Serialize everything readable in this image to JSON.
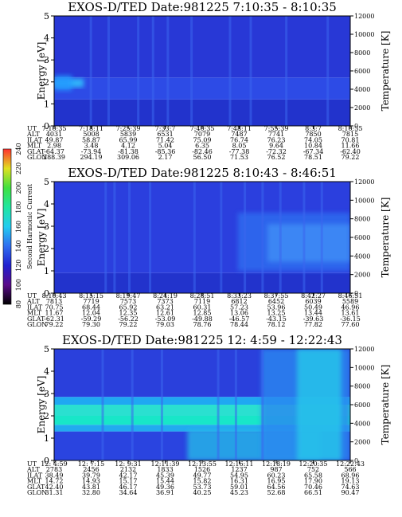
{
  "chart_data": [
    {
      "type": "heatmap",
      "title": "EXOS-D/TED   Date:981225  7:10:35 - 8:10:35",
      "ylabel": "Energy [eV]",
      "y2label": "Temperature [K]",
      "ylim": [
        0,
        5
      ],
      "yticks": [
        "0",
        "1",
        "2",
        "3",
        "4",
        "5"
      ],
      "y2lim": [
        0,
        12000
      ],
      "y2ticks": [
        "0",
        "2000",
        "4000",
        "6000",
        "8000",
        "10000",
        "12000"
      ],
      "bands": [
        {
          "from": 0.0,
          "to": 1.2,
          "color": "#2233cc"
        },
        {
          "from": 1.2,
          "to": 2.2,
          "color": "#2d4be6"
        },
        {
          "from": 2.2,
          "to": 5.0,
          "color": "#2838d6"
        }
      ],
      "blobs": [
        {
          "x0": 0.0,
          "x1": 0.1,
          "y0": 1.75,
          "y1": 2.15,
          "color": "#33ccff"
        },
        {
          "x0": 0.0,
          "x1": 0.06,
          "y0": 1.6,
          "y1": 2.3,
          "color": "#2299ff"
        }
      ],
      "streaks": [
        0.12,
        0.18,
        0.28,
        0.33,
        0.38,
        0.46,
        0.59,
        0.66,
        0.78,
        0.92
      ],
      "annotation": {
        "rows": [
          {
            "label": "UT",
            "values": [
              "7:10:35",
              "7:18:11",
              "7:25:39",
              "7:33:7",
              "7:40:35",
              "7:48:11",
              "7:55:39",
              "8:3:7",
              "8:10:35"
            ]
          },
          {
            "label": "ALT",
            "values": [
              "4031",
              "5008",
              "5839",
              "6531",
              "7079",
              "7487",
              "7741",
              "7850",
              "7815"
            ]
          },
          {
            "label": "ILAT",
            "values": [
              "49.87",
              "58.87",
              "65.99",
              "71.42",
              "75.09",
              "76.74",
              "76.23",
              "74.05",
              "70.81"
            ]
          },
          {
            "label": "MLT",
            "values": [
              "2.98",
              "3.48",
              "4.12",
              "5.04",
              "6.35",
              "8.05",
              "9.64",
              "10.84",
              "11.66"
            ]
          },
          {
            "label": "GLAT",
            "values": [
              "-64.37",
              "-73.94",
              "-81.38",
              "-85.36",
              "-82.46",
              "-77.38",
              "-72.32",
              "-67.34",
              "-62.40"
            ]
          },
          {
            "label": "GLON",
            "values": [
              "288.39",
              "294.19",
              "309.06",
              "2.17",
              "56.50",
              "71.53",
              "76.52",
              "78.51",
              "79.22"
            ]
          }
        ]
      }
    },
    {
      "type": "heatmap",
      "title": "EXOS-D/TED   Date:981225  8:10:43 - 8:46:51",
      "ylabel": "Energy [eV]",
      "y2label": "Temperature [K]",
      "ylim": [
        0,
        5
      ],
      "yticks": [
        "0",
        "1",
        "2",
        "3",
        "4",
        "5"
      ],
      "y2lim": [
        0,
        12000
      ],
      "y2ticks": [
        "0",
        "2000",
        "4000",
        "6000",
        "8000",
        "10000",
        "12000"
      ],
      "bands": [
        {
          "from": 0.0,
          "to": 0.9,
          "color": "#2233cc"
        },
        {
          "from": 0.9,
          "to": 5.0,
          "color": "#2b3fde"
        }
      ],
      "blobs": [
        {
          "x0": 0.62,
          "x1": 1.0,
          "y0": 1.0,
          "y1": 3.6,
          "color": "#2f6ef0"
        },
        {
          "x0": 0.72,
          "x1": 1.0,
          "y0": 1.4,
          "y1": 3.1,
          "color": "#3f8ff6"
        }
      ],
      "streaks": [
        0.17,
        0.2,
        0.25,
        0.32,
        0.47,
        0.56,
        0.64,
        0.7,
        0.76,
        0.84,
        0.9
      ],
      "annotation": {
        "rows": [
          {
            "label": "UT",
            "values": [
              "8:10:43",
              "8:15:15",
              "8:19:47",
              "8:24:19",
              "8:28:51",
              "8:33:23",
              "8:37:55",
              "8:42:27",
              "8:46:51"
            ]
          },
          {
            "label": "ALT",
            "values": [
              "7813",
              "7719",
              "7573",
              "7373",
              "7119",
              "6812",
              "6452",
              "6039",
              "5589"
            ]
          },
          {
            "label": "ILAT",
            "values": [
              "70.75",
              "68.44",
              "65.92",
              "63.21",
              "60.31",
              "57.23",
              "53.96",
              "50.49",
              "46.96"
            ]
          },
          {
            "label": "MLT",
            "values": [
              "11.67",
              "12.04",
              "12.35",
              "12.61",
              "12.85",
              "13.06",
              "13.25",
              "13.44",
              "13.61"
            ]
          },
          {
            "label": "GLAT",
            "values": [
              "-62.31",
              "-59.29",
              "-56.22",
              "-53.09",
              "-49.88",
              "-46.57",
              "-43.15",
              "-39.63",
              "-36.15"
            ]
          },
          {
            "label": "GLON",
            "values": [
              "79.22",
              "79.30",
              "79.22",
              "79.03",
              "78.76",
              "78.44",
              "78.12",
              "77.82",
              "77.60"
            ]
          }
        ]
      }
    },
    {
      "type": "heatmap",
      "title": "EXOS-D/TED   Date:981225  12: 4:59 - 12:22:43",
      "ylabel": "Energy [eV]",
      "y2label": "Temperature [K]",
      "ylim": [
        0,
        5
      ],
      "yticks": [
        "0",
        "1",
        "2",
        "3",
        "4",
        "5"
      ],
      "y2lim": [
        0,
        12000
      ],
      "y2ticks": [
        "0",
        "2000",
        "4000",
        "6000",
        "8000",
        "10000",
        "12000"
      ],
      "bands": [
        {
          "from": 0.0,
          "to": 1.3,
          "color": "#2a44e0"
        },
        {
          "from": 1.3,
          "to": 1.6,
          "color": "#22aaf0"
        },
        {
          "from": 1.6,
          "to": 2.0,
          "color": "#18e6c8"
        },
        {
          "from": 2.0,
          "to": 2.5,
          "color": "#2ae0d0"
        },
        {
          "from": 2.5,
          "to": 2.85,
          "color": "#1fa8f2"
        },
        {
          "from": 2.85,
          "to": 5.0,
          "color": "#2a40dc"
        }
      ],
      "blobs": [
        {
          "x0": 0.45,
          "x1": 0.9,
          "y0": 0.0,
          "y1": 1.4,
          "color": "#27b8e8"
        },
        {
          "x0": 0.7,
          "x1": 1.0,
          "y0": 0.0,
          "y1": 5.0,
          "color": "#2b88f0"
        },
        {
          "x0": 0.82,
          "x1": 0.97,
          "y0": 0.0,
          "y1": 5.0,
          "color": "#27c8ea"
        }
      ],
      "streaks": [
        0.16,
        0.26,
        0.36,
        0.55,
        0.61,
        0.7
      ],
      "annotation": {
        "rows": [
          {
            "label": "UT",
            "values": [
              "12: 4:59",
              "12: 7:15",
              "12: 9:31",
              "12:11:39",
              "12:13:55",
              "12:16:11",
              "12:18:19",
              "12:20:35",
              "12:22:43"
            ]
          },
          {
            "label": "ALT",
            "values": [
              "2783",
              "2456",
              "2132",
              "1833",
              "1526",
              "1237",
              "987",
              "752",
              "566"
            ]
          },
          {
            "label": "ILAT",
            "values": [
              "38.49",
              "39.79",
              "42.17",
              "45.39",
              "49.77",
              "54.95",
              "60.23",
              "65.58",
              "68.96"
            ]
          },
          {
            "label": "MLT",
            "values": [
              "14.72",
              "14.93",
              "15.17",
              "15.44",
              "15.82",
              "16.31",
              "16.95",
              "17.90",
              "19.13"
            ]
          },
          {
            "label": "GLAT",
            "values": [
              "42.40",
              "43.81",
              "46.17",
              "49.36",
              "53.73",
              "59.01",
              "64.56",
              "70.46",
              "74.63"
            ]
          },
          {
            "label": "GLON",
            "values": [
              "31.31",
              "32.80",
              "34.64",
              "36.91",
              "40.25",
              "45.23",
              "52.68",
              "66.51",
              "90.47"
            ]
          }
        ]
      }
    }
  ],
  "colorbar": {
    "label": "Second Harmonic Current",
    "ticks": [
      "80",
      "100",
      "120",
      "140",
      "160",
      "180",
      "200",
      "220",
      "240"
    ],
    "stops": [
      "#000000",
      "#5a0a8a",
      "#2020d0",
      "#2f6ef0",
      "#22ccf0",
      "#20e6a0",
      "#40e040",
      "#e0e020",
      "#ff3030"
    ]
  }
}
